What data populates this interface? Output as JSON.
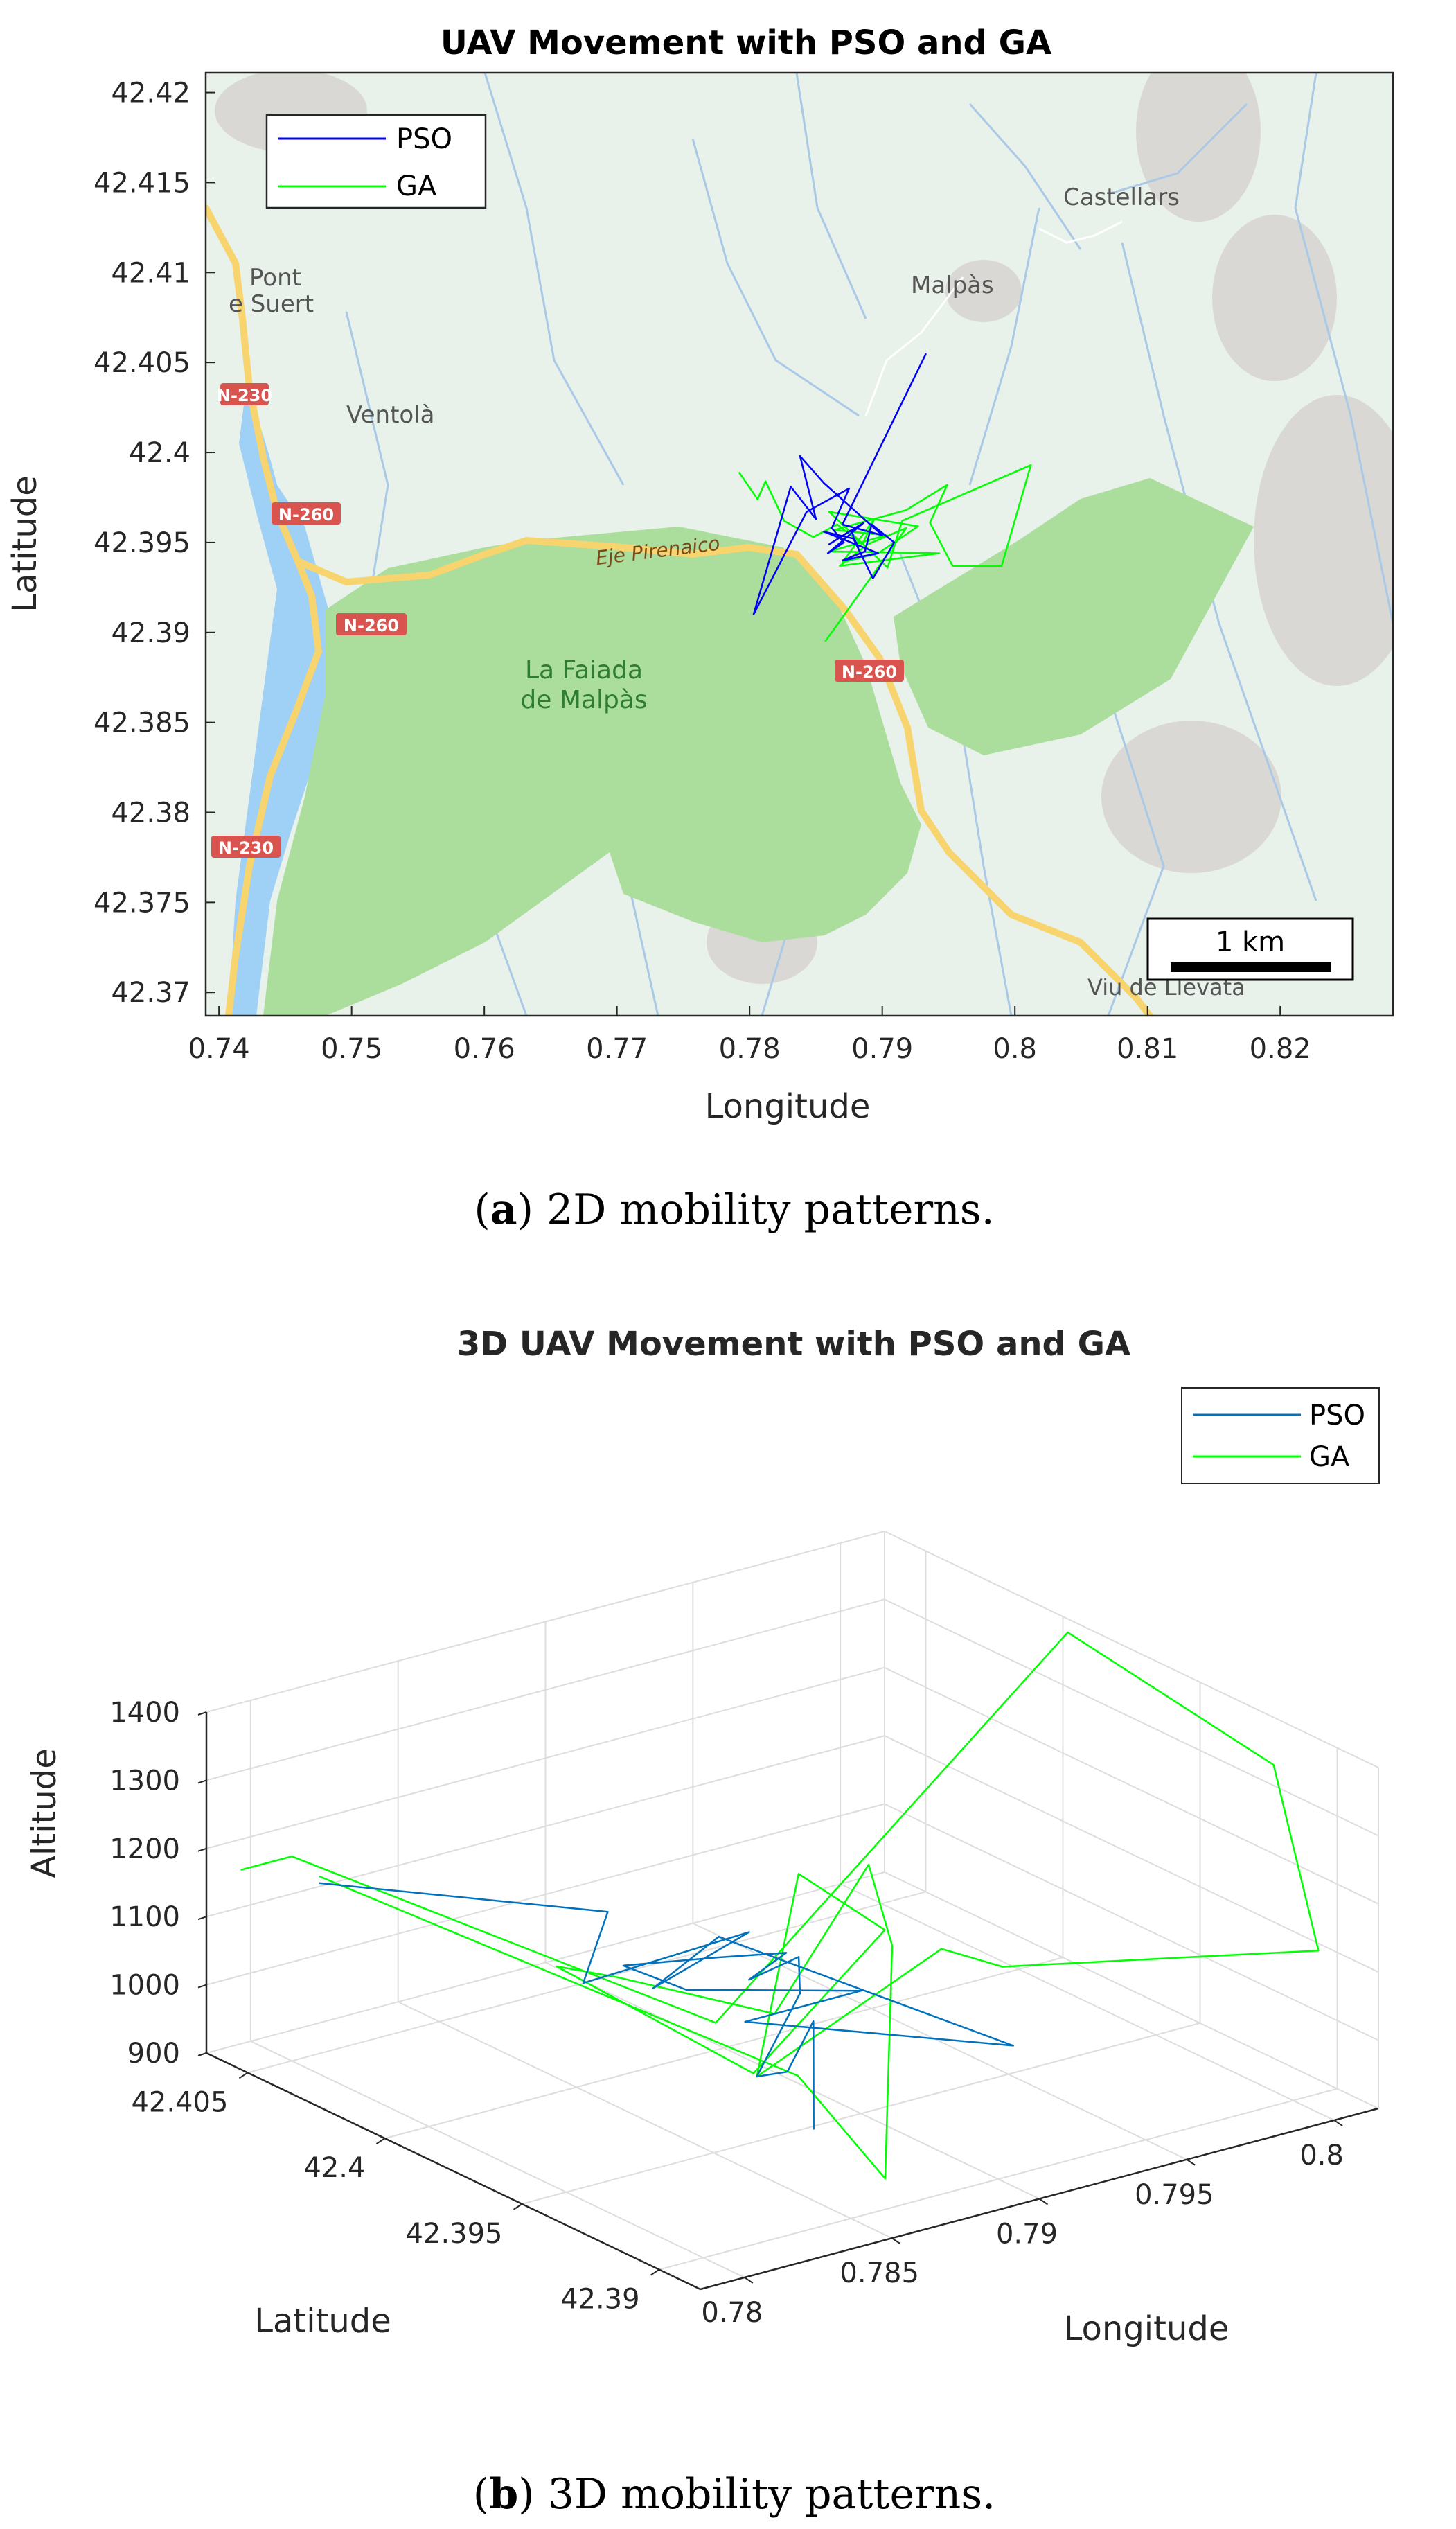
{
  "chart_data": [
    {
      "type": "line",
      "title": "UAV Movement with PSO and GA",
      "xlabel": "Longitude",
      "ylabel": "Latitude",
      "xlim": [
        0.739,
        0.8285
      ],
      "ylim": [
        42.3687,
        42.4211
      ],
      "xticks": [
        "0.74",
        "0.75",
        "0.76",
        "0.77",
        "0.78",
        "0.79",
        "0.8",
        "0.81",
        "0.82"
      ],
      "xtick_values": [
        0.74,
        0.75,
        0.76,
        0.77,
        0.78,
        0.79,
        0.8,
        0.81,
        0.82
      ],
      "yticks": [
        "42.37",
        "42.375",
        "42.38",
        "42.385",
        "42.39",
        "42.395",
        "42.4",
        "42.405",
        "42.41",
        "42.415",
        "42.42"
      ],
      "ytick_values": [
        42.37,
        42.375,
        42.38,
        42.385,
        42.39,
        42.395,
        42.4,
        42.405,
        42.41,
        42.415,
        42.42
      ],
      "legend": "top-left",
      "grid": false,
      "background": "map",
      "series": [
        {
          "name": "PSO",
          "color": "#0000ff",
          "x": [
            0.7933,
            0.787,
            0.79,
            0.7856,
            0.7838,
            0.785,
            0.7831,
            0.7803,
            0.7843,
            0.7875,
            0.7862,
            0.7871,
            0.7859,
            0.7886,
            0.786,
            0.7877,
            0.7879,
            0.7893,
            0.7909,
            0.7892,
            0.7887,
            0.787,
            0.7897,
            0.7856,
            0.7879,
            0.7882
          ],
          "y": [
            42.4055,
            42.396,
            42.3954,
            42.3983,
            42.3998,
            42.3963,
            42.3981,
            42.391,
            42.3967,
            42.398,
            42.3958,
            42.395,
            42.3944,
            42.3961,
            42.3949,
            42.3957,
            42.3951,
            42.393,
            42.395,
            42.396,
            42.3945,
            42.394,
            42.3944,
            42.3956,
            42.3952,
            42.3947
          ]
        },
        {
          "name": "GA",
          "color": "#00ff00",
          "x": [
            0.7792,
            0.7806,
            0.7812,
            0.7826,
            0.7848,
            0.7866,
            0.7885,
            0.7894,
            0.787,
            0.7897,
            0.7927,
            0.786,
            0.7904,
            0.7915,
            0.8012,
            0.799,
            0.7953,
            0.7936,
            0.7949,
            0.7918,
            0.7864,
            0.7903,
            0.786,
            0.7943,
            0.7868,
            0.7889,
            0.7918,
            0.7857
          ],
          "y": [
            42.3989,
            42.3974,
            42.3984,
            42.3962,
            42.3953,
            42.396,
            42.3949,
            42.3963,
            42.3939,
            42.3944,
            42.3959,
            42.3967,
            42.3936,
            42.3962,
            42.3993,
            42.3937,
            42.3937,
            42.3961,
            42.3982,
            42.3968,
            42.3957,
            42.3954,
            42.3945,
            42.3944,
            42.3937,
            42.3949,
            42.3958,
            42.3895
          ]
        }
      ]
    },
    {
      "type": "line",
      "title": "3D UAV Movement with PSO and GA",
      "xlabel": "Longitude",
      "ylabel": "Latitude",
      "zlabel": "Altitude",
      "xlim": [
        0.7785,
        0.8015
      ],
      "ylim": [
        42.3885,
        42.4065
      ],
      "zlim": [
        900,
        1400
      ],
      "xticks": [
        "0.78",
        "0.785",
        "0.79",
        "0.795",
        "0.8"
      ],
      "xtick_values": [
        0.78,
        0.785,
        0.79,
        0.795,
        0.8
      ],
      "yticks": [
        "42.39",
        "42.395",
        "42.4",
        "42.405"
      ],
      "ytick_values": [
        42.39,
        42.395,
        42.4,
        42.405
      ],
      "zticks": [
        "900",
        "1000",
        "1100",
        "1200",
        "1300",
        "1400"
      ],
      "ztick_values": [
        900,
        1000,
        1100,
        1200,
        1300,
        1400
      ],
      "legend": "top-right",
      "grid": true,
      "series": [
        {
          "name": "PSO",
          "color": "#0072bd",
          "x": [
            0.78,
            0.7856,
            0.7843,
            0.789,
            0.7862,
            0.7875,
            0.7933,
            0.787,
            0.79,
            0.785,
            0.7838,
            0.7856,
            0.787,
            0.7862,
            0.7877,
            0.787,
            0.786,
            0.7875,
            0.7882,
            0.787
          ],
          "y": [
            42.404,
            42.3995,
            42.399,
            42.398,
            42.3985,
            42.3975,
            42.393,
            42.396,
            42.395,
            42.396,
            42.397,
            42.3955,
            42.3945,
            42.395,
            42.3948,
            42.394,
            42.3945,
            42.395,
            42.3948,
            42.3935
          ],
          "z": [
            1180,
            1160,
            1080,
            1120,
            1060,
            1140,
            1000,
            1050,
            1080,
            1120,
            1150,
            1170,
            1180,
            1140,
            1160,
            1130,
            1010,
            990,
            1060,
            940
          ]
        },
        {
          "name": "GA",
          "color": "#00ff00",
          "x": [
            0.7792,
            0.78,
            0.786,
            0.8012,
            0.8012,
            0.799,
            0.7948,
            0.7918,
            0.786,
            0.789,
            0.7936,
            0.787,
            0.782,
            0.785,
            0.788,
            0.7897,
            0.7918,
            0.7857,
            0.786,
            0.78
          ],
          "y": [
            42.406,
            42.405,
            42.396,
            42.3995,
            42.392,
            42.388,
            42.395,
            42.394,
            42.3945,
            42.3962,
            42.398,
            42.3957,
            42.3975,
            42.3985,
            42.396,
            42.3944,
            42.3958,
            42.3895,
            42.393,
            42.404
          ],
          "z": [
            1170,
            1200,
            1060,
            1390,
            1340,
            1170,
            1060,
            1140,
            1010,
            1240,
            1070,
            980,
            1160,
            1090,
            1050,
            1280,
            1110,
            960,
            1040,
            1190
          ]
        }
      ]
    }
  ],
  "map_labels": {
    "pont": "Pont",
    "suert": "e Suert",
    "ventola": "Ventolà",
    "malpas": "Malpàs",
    "castellars": "Castellars",
    "faiada1": "La Faiada",
    "faiada2": "de Malpàs",
    "eje": "Eje Pirenaico",
    "viu": "Viu de Llevata",
    "n230a": "N-230",
    "n260a": "N-260",
    "n260b": "N-260",
    "n260c": "N-260",
    "n230b": "N-230",
    "scale": "1 km"
  },
  "captions": {
    "a_letter": "a",
    "a_text": " 2D mobility patterns.",
    "b_letter": "b",
    "b_text": " 3D mobility patterns."
  },
  "colors": {
    "land": "#e8f1ea",
    "park": "#abdd9c",
    "water": "#9fd0f5",
    "rivers": "#aac9e6",
    "road": "#f7d46e",
    "hills": "#d9d8d5",
    "road_label": "#d9534f"
  }
}
